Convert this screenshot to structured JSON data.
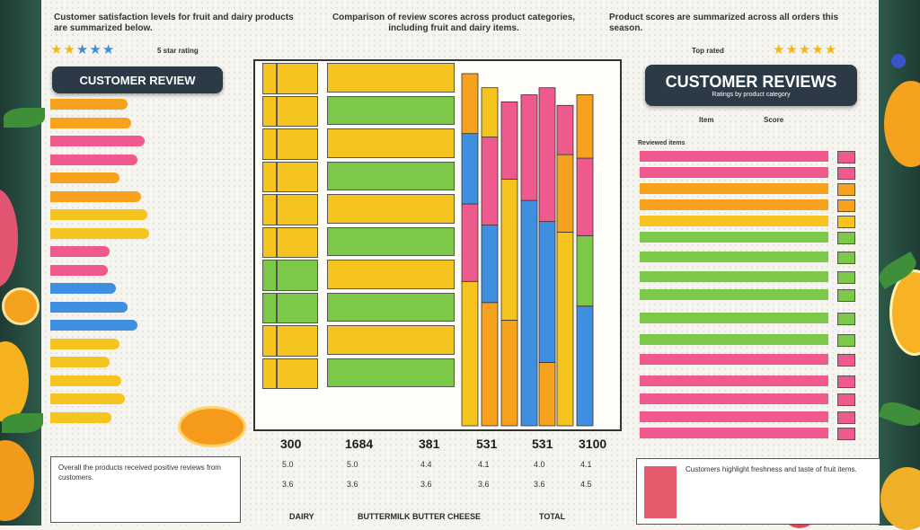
{
  "colors": {
    "yellow": "#f5c41f",
    "green": "#7cc94a",
    "pink": "#ef5a8e",
    "orange": "#f6a21e",
    "blue": "#3f8fe0",
    "dark": "#2b3a46"
  },
  "left_panel": {
    "title": "CUSTOMER REVIEW",
    "caption": "Customer satisfaction levels for fruit and dairy products are summarized below.",
    "stars_note": "5 star rating"
  },
  "right_panel": {
    "title": "CUSTOMER REVIEWS",
    "subtitle": "Ratings by product category",
    "col_a": "Item",
    "col_b": "Score",
    "caption": "Product scores are summarized across all orders this season.",
    "list_header": "Reviewed items",
    "stars_note": "Top rated"
  },
  "center": {
    "caption": "Comparison of review scores across product categories, including fruit and dairy items."
  },
  "chart_data": [
    {
      "type": "bar",
      "orientation": "horizontal",
      "title": "CUSTOMER REVIEW",
      "categories": [
        "",
        "",
        "",
        "",
        "",
        "",
        "",
        "",
        "",
        "",
        "",
        "",
        "",
        "",
        "",
        "",
        "",
        ""
      ],
      "values": [
        78,
        82,
        95,
        88,
        70,
        92,
        98,
        100,
        60,
        58,
        66,
        78,
        88,
        70,
        60,
        72,
        75,
        62
      ],
      "colors": [
        "orange",
        "orange",
        "pink",
        "pink",
        "orange",
        "orange",
        "yellow",
        "yellow",
        "pink",
        "pink",
        "blue",
        "blue",
        "blue",
        "yellow",
        "yellow",
        "yellow",
        "yellow",
        "yellow"
      ]
    },
    {
      "type": "table",
      "columns": [
        "",
        ""
      ],
      "rows": [
        [
          "",
          ""
        ],
        [
          "",
          ""
        ],
        [
          "",
          ""
        ],
        [
          "",
          ""
        ],
        [
          "",
          ""
        ],
        [
          "",
          ""
        ],
        [
          "",
          ""
        ],
        [
          "",
          ""
        ],
        [
          "",
          ""
        ],
        [
          "",
          ""
        ]
      ],
      "footer": [
        "300",
        "1684",
        "381",
        "531",
        "531",
        "3100"
      ],
      "footer_sub": [
        "5.0",
        "5.0",
        "4.4",
        "4.1",
        "4.0",
        "4.1"
      ],
      "footer_sub2": [
        "3.6",
        "3.6",
        "3.6",
        "3.6",
        "3.6",
        "4.5"
      ]
    },
    {
      "type": "bar",
      "orientation": "vertical",
      "ylim": [
        0,
        100
      ],
      "bars": [
        {
          "segments": [
            {
              "color": "yellow",
              "value": 41
            },
            {
              "color": "pink",
              "value": 22
            },
            {
              "color": "blue",
              "value": 20
            },
            {
              "color": "orange",
              "value": 17
            }
          ]
        },
        {
          "segments": [
            {
              "color": "orange",
              "value": 35
            },
            {
              "color": "blue",
              "value": 22
            },
            {
              "color": "pink",
              "value": 25
            },
            {
              "color": "yellow",
              "value": 14
            }
          ]
        },
        {
          "segments": [
            {
              "color": "orange",
              "value": 30
            },
            {
              "color": "yellow",
              "value": 40
            },
            {
              "color": "pink",
              "value": 22
            }
          ]
        },
        {
          "segments": [
            {
              "color": "blue",
              "value": 64
            },
            {
              "color": "pink",
              "value": 30
            }
          ]
        },
        {
          "segments": [
            {
              "color": "orange",
              "value": 18
            },
            {
              "color": "blue",
              "value": 40
            },
            {
              "color": "pink",
              "value": 38
            }
          ]
        },
        {
          "segments": [
            {
              "color": "yellow",
              "value": 55
            },
            {
              "color": "orange",
              "value": 22
            },
            {
              "color": "pink",
              "value": 14
            }
          ]
        },
        {
          "segments": [
            {
              "color": "blue",
              "value": 34
            },
            {
              "color": "green",
              "value": 20
            },
            {
              "color": "pink",
              "value": 22
            },
            {
              "color": "orange",
              "value": 18
            }
          ]
        }
      ]
    },
    {
      "type": "bar",
      "orientation": "horizontal",
      "title": "CUSTOMER REVIEWS",
      "categories": [
        "",
        "",
        "",
        "",
        "",
        "",
        "",
        "",
        "",
        "",
        "",
        "",
        "",
        "",
        "",
        ""
      ],
      "values": [
        100,
        100,
        100,
        100,
        100,
        100,
        100,
        100,
        100,
        100,
        100,
        100,
        100,
        100,
        100,
        100
      ],
      "colors": [
        "pink",
        "pink",
        "orange",
        "orange",
        "yellow",
        "green",
        "green",
        "green",
        "green",
        "green",
        "green",
        "pink",
        "pink",
        "pink",
        "pink",
        "pink"
      ]
    }
  ],
  "bottom": {
    "left_text": "Overall the products received positive reviews from customers.",
    "right_text": "Customers highlight freshness and taste of fruit items.",
    "labels": [
      "DAIRY",
      "BUTTERMILK BUTTER CHEESE",
      "TOTAL"
    ]
  }
}
